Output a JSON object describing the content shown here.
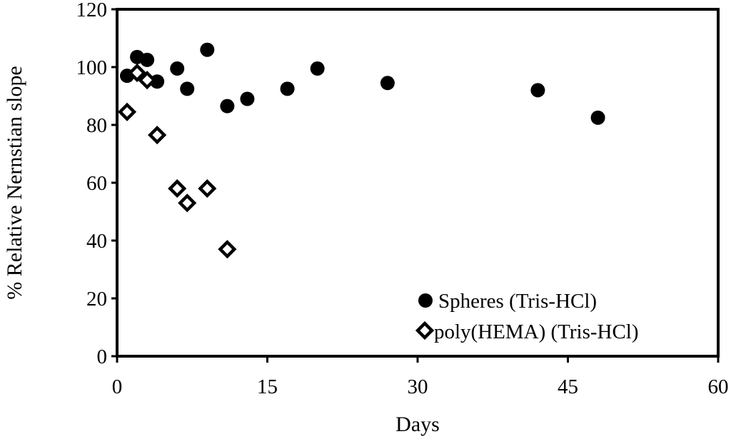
{
  "chart_data": {
    "type": "scatter",
    "title": "",
    "xlabel": "Days",
    "ylabel": "% Relative Nernstian slope",
    "xlim": [
      0,
      60
    ],
    "ylim": [
      0,
      120
    ],
    "x_ticks": [
      "0",
      "15",
      "30",
      "45",
      "60"
    ],
    "y_ticks": [
      "0",
      "20",
      "40",
      "60",
      "80",
      "100",
      "120"
    ],
    "grid": false,
    "legend_position": "bottom-right",
    "series": [
      {
        "name": "Spheres (Tris-HCl)",
        "marker": "filled-circle",
        "color": "#000000",
        "points": [
          {
            "x": 1,
            "y": 97
          },
          {
            "x": 2,
            "y": 103.5
          },
          {
            "x": 3,
            "y": 102.5
          },
          {
            "x": 4,
            "y": 95
          },
          {
            "x": 6,
            "y": 99.5
          },
          {
            "x": 7,
            "y": 92.5
          },
          {
            "x": 9,
            "y": 106
          },
          {
            "x": 11,
            "y": 86.5
          },
          {
            "x": 13,
            "y": 89
          },
          {
            "x": 17,
            "y": 92.5
          },
          {
            "x": 20,
            "y": 99.5
          },
          {
            "x": 27,
            "y": 94.5
          },
          {
            "x": 42,
            "y": 92
          },
          {
            "x": 48,
            "y": 82.5
          }
        ]
      },
      {
        "name": "poly(HEMA) (Tris-HCl)",
        "marker": "open-diamond",
        "color": "#000000",
        "points": [
          {
            "x": 1,
            "y": 84.5
          },
          {
            "x": 2,
            "y": 98
          },
          {
            "x": 3,
            "y": 95.5
          },
          {
            "x": 4,
            "y": 76.5
          },
          {
            "x": 6,
            "y": 58
          },
          {
            "x": 7,
            "y": 53
          },
          {
            "x": 9,
            "y": 58
          },
          {
            "x": 11,
            "y": 37
          }
        ]
      }
    ]
  }
}
